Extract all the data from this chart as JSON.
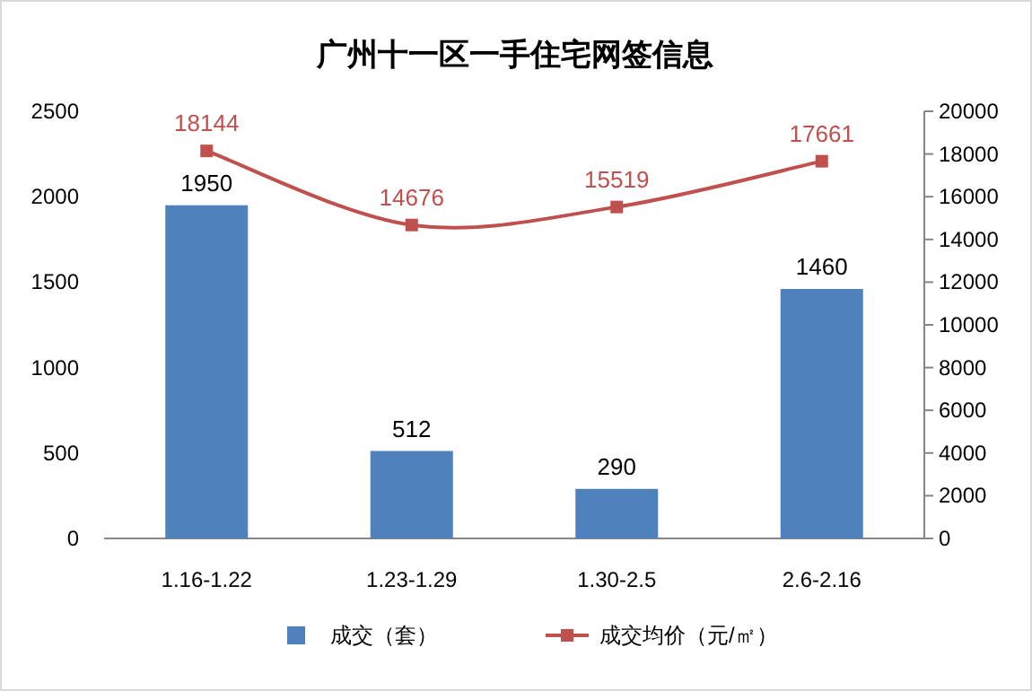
{
  "chart_data": {
    "type": "bar",
    "title": "广州十一区一手住宅网签信息",
    "categories": [
      "1.16-1.22",
      "1.23-1.29",
      "1.30-2.5",
      "2.6-2.16"
    ],
    "series": [
      {
        "name": "成交（套）",
        "color": "#4f81bd",
        "values": [
          1950,
          512,
          290,
          1460
        ]
      },
      {
        "name": "成交均价（元/㎡）",
        "type": "line",
        "axis": "y2",
        "color": "#c0504d",
        "values": [
          18144,
          14676,
          15519,
          17661
        ]
      }
    ],
    "ylim": [
      0,
      2500
    ],
    "yticks": [
      0,
      500,
      1000,
      1500,
      2000,
      2500
    ],
    "y2lim": [
      0,
      20000
    ],
    "y2ticks": [
      0,
      2000,
      4000,
      6000,
      8000,
      10000,
      12000,
      14000,
      16000,
      18000,
      20000
    ],
    "data_labels": true,
    "legend": "bottom",
    "marker": "square"
  }
}
